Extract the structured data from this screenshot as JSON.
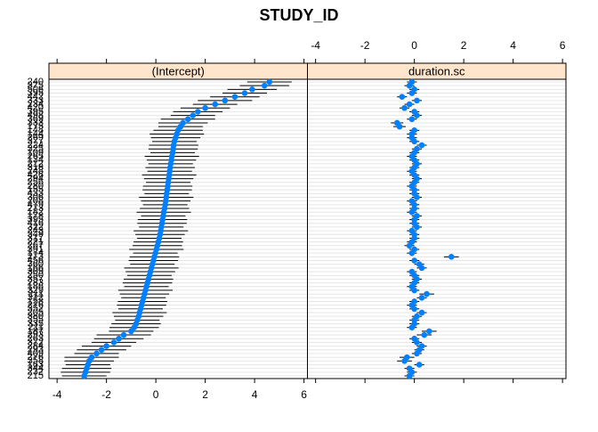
{
  "chart_data": {
    "type": "dotplot",
    "title": "STUDY_ID",
    "categories": [
      "240",
      "375",
      "506",
      "395",
      "442",
      "333",
      "234",
      "420",
      "395",
      "498",
      "369",
      "333",
      "175",
      "148",
      "144",
      "269",
      "377",
      "224",
      "325",
      "109",
      "265",
      "134",
      "212",
      "318",
      "248",
      "426",
      "294",
      "256",
      "280",
      "155",
      "433",
      "306",
      "208",
      "479",
      "273",
      "182",
      "178",
      "395",
      "416",
      "322",
      "243",
      "349",
      "317",
      "221",
      "267",
      "391",
      "174",
      "273",
      "456",
      "360",
      "166",
      "309",
      "250",
      "357",
      "283",
      "186",
      "329",
      "211",
      "312",
      "158",
      "216",
      "352",
      "205",
      "380",
      "355",
      "335",
      "211",
      "187",
      "293",
      "263",
      "372",
      "284",
      "293",
      "409",
      "276",
      "358",
      "163",
      "344",
      "232",
      "215"
    ],
    "panels": [
      {
        "name": "(Intercept)",
        "values": [
          4.6,
          4.4,
          3.9,
          3.6,
          3.2,
          2.8,
          2.4,
          2.0,
          1.7,
          1.5,
          1.3,
          1.1,
          1.0,
          0.9,
          0.85,
          0.8,
          0.75,
          0.72,
          0.7,
          0.68,
          0.65,
          0.63,
          0.6,
          0.58,
          0.56,
          0.54,
          0.52,
          0.5,
          0.48,
          0.46,
          0.44,
          0.42,
          0.4,
          0.38,
          0.35,
          0.32,
          0.3,
          0.27,
          0.25,
          0.22,
          0.2,
          0.17,
          0.14,
          0.1,
          0.06,
          0.02,
          -0.02,
          -0.06,
          -0.1,
          -0.14,
          -0.18,
          -0.22,
          -0.26,
          -0.3,
          -0.34,
          -0.38,
          -0.42,
          -0.46,
          -0.5,
          -0.54,
          -0.58,
          -0.62,
          -0.66,
          -0.7,
          -0.75,
          -0.8,
          -0.88,
          -1.0,
          -1.3,
          -1.5,
          -1.7,
          -2.0,
          -2.2,
          -2.4,
          -2.6,
          -2.7,
          -2.75,
          -2.8,
          -2.85,
          -2.9
        ],
        "errors": [
          0.9,
          1.0,
          1.0,
          0.9,
          1.0,
          1.1,
          0.9,
          1.0,
          1.0,
          0.9,
          1.1,
          1.0,
          0.9,
          1.0,
          1.1,
          1.0,
          0.9,
          1.0,
          1.0,
          0.9,
          1.1,
          1.0,
          0.9,
          1.0,
          0.9,
          1.1,
          1.0,
          0.9,
          1.0,
          1.0,
          0.9,
          1.1,
          1.0,
          0.9,
          1.0,
          1.1,
          0.9,
          1.0,
          1.0,
          0.9,
          1.1,
          1.0,
          0.9,
          1.0,
          1.0,
          1.1,
          0.9,
          1.0,
          1.0,
          0.9,
          1.1,
          1.0,
          0.9,
          1.0,
          1.0,
          0.9,
          1.1,
          1.0,
          0.9,
          1.0,
          1.0,
          0.9,
          1.1,
          1.0,
          0.9,
          1.0,
          1.0,
          0.9,
          1.1,
          1.0,
          0.9,
          1.0,
          1.0,
          0.9,
          1.1,
          1.0,
          0.9,
          1.0,
          1.0,
          0.9
        ]
      },
      {
        "name": "duration.sc",
        "values": [
          -0.1,
          -0.2,
          0.0,
          -0.1,
          -0.5,
          0.1,
          -0.2,
          -0.4,
          0.0,
          0.1,
          -0.1,
          -0.7,
          -0.6,
          0.0,
          -0.1,
          -0.1,
          0.0,
          0.3,
          0.1,
          0.0,
          -0.1,
          0.0,
          0.1,
          0.0,
          -0.1,
          0.0,
          0.1,
          0.0,
          -0.1,
          0.0,
          0.0,
          0.1,
          -0.1,
          0.0,
          0.0,
          -0.1,
          0.1,
          0.0,
          0.0,
          0.1,
          -0.1,
          0.0,
          0.0,
          -0.1,
          -0.2,
          0.0,
          -0.1,
          1.5,
          0.0,
          0.2,
          0.3,
          -0.1,
          0.0,
          0.1,
          0.0,
          -0.1,
          0.0,
          0.5,
          0.3,
          0.0,
          -0.1,
          0.0,
          0.3,
          0.1,
          0.0,
          0.0,
          -0.1,
          0.6,
          0.4,
          0.0,
          0.1,
          0.3,
          0.2,
          0.1,
          -0.3,
          -0.4,
          0.2,
          -0.2,
          -0.1,
          -0.2
        ],
        "errors": [
          0.2,
          0.2,
          0.2,
          0.2,
          0.2,
          0.2,
          0.2,
          0.2,
          0.2,
          0.2,
          0.2,
          0.25,
          0.25,
          0.2,
          0.2,
          0.2,
          0.2,
          0.2,
          0.2,
          0.2,
          0.2,
          0.2,
          0.2,
          0.2,
          0.2,
          0.2,
          0.2,
          0.2,
          0.2,
          0.2,
          0.2,
          0.2,
          0.2,
          0.2,
          0.2,
          0.2,
          0.2,
          0.2,
          0.2,
          0.2,
          0.2,
          0.2,
          0.2,
          0.2,
          0.2,
          0.2,
          0.2,
          0.3,
          0.2,
          0.2,
          0.2,
          0.2,
          0.2,
          0.2,
          0.2,
          0.2,
          0.2,
          0.3,
          0.2,
          0.2,
          0.2,
          0.2,
          0.2,
          0.2,
          0.2,
          0.2,
          0.2,
          0.3,
          0.3,
          0.2,
          0.2,
          0.2,
          0.2,
          0.2,
          0.3,
          0.3,
          0.2,
          0.2,
          0.2,
          0.2
        ]
      }
    ],
    "color": "#0080ff",
    "strip_color": "#ffe5cc",
    "xlim": [
      -4.33,
      6.14
    ],
    "xticks": [
      -4,
      -2,
      0,
      2,
      4,
      6
    ],
    "grid": true
  }
}
